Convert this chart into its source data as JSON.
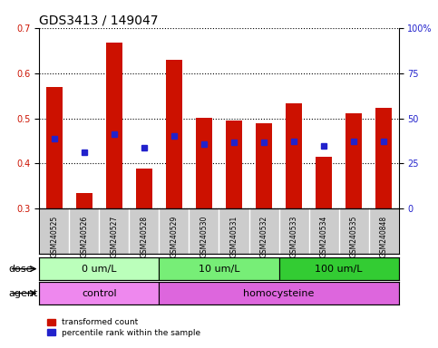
{
  "title": "GDS3413 / 149047",
  "samples": [
    "GSM240525",
    "GSM240526",
    "GSM240527",
    "GSM240528",
    "GSM240529",
    "GSM240530",
    "GSM240531",
    "GSM240532",
    "GSM240533",
    "GSM240534",
    "GSM240535",
    "GSM240848"
  ],
  "bar_values": [
    0.57,
    0.335,
    0.667,
    0.388,
    0.63,
    0.502,
    0.495,
    0.49,
    0.534,
    0.415,
    0.512,
    0.524
  ],
  "bar_bottom": 0.3,
  "percentile_values": [
    0.455,
    0.426,
    0.466,
    0.436,
    0.462,
    0.444,
    0.448,
    0.448,
    0.45,
    0.44,
    0.449,
    0.449
  ],
  "ylim_left": [
    0.3,
    0.7
  ],
  "ylim_right": [
    0,
    100
  ],
  "yticks_left": [
    0.3,
    0.4,
    0.5,
    0.6,
    0.7
  ],
  "ytick_labels_left": [
    "0.3",
    "0.4",
    "0.5",
    "0.6",
    "0.7"
  ],
  "yticks_right": [
    0,
    25,
    50,
    75,
    100
  ],
  "ytick_labels_right": [
    "0",
    "25",
    "50",
    "75",
    "100%"
  ],
  "bar_color": "#cc1100",
  "percentile_color": "#2222cc",
  "dose_groups": [
    {
      "label": "0 um/L",
      "start": 0,
      "end": 4,
      "color": "#bbffbb"
    },
    {
      "label": "10 um/L",
      "start": 4,
      "end": 8,
      "color": "#77ee77"
    },
    {
      "label": "100 um/L",
      "start": 8,
      "end": 12,
      "color": "#33cc33"
    }
  ],
  "agent_groups": [
    {
      "label": "control",
      "start": 0,
      "end": 4,
      "color": "#ee88ee"
    },
    {
      "label": "homocysteine",
      "start": 4,
      "end": 12,
      "color": "#dd66dd"
    }
  ],
  "legend_items": [
    {
      "label": "transformed count",
      "color": "#cc1100"
    },
    {
      "label": "percentile rank within the sample",
      "color": "#2222cc"
    }
  ],
  "xlabel_dose": "dose",
  "xlabel_agent": "agent",
  "title_fontsize": 10,
  "tick_fontsize": 7,
  "label_fontsize": 8,
  "sample_fontsize": 5.5
}
